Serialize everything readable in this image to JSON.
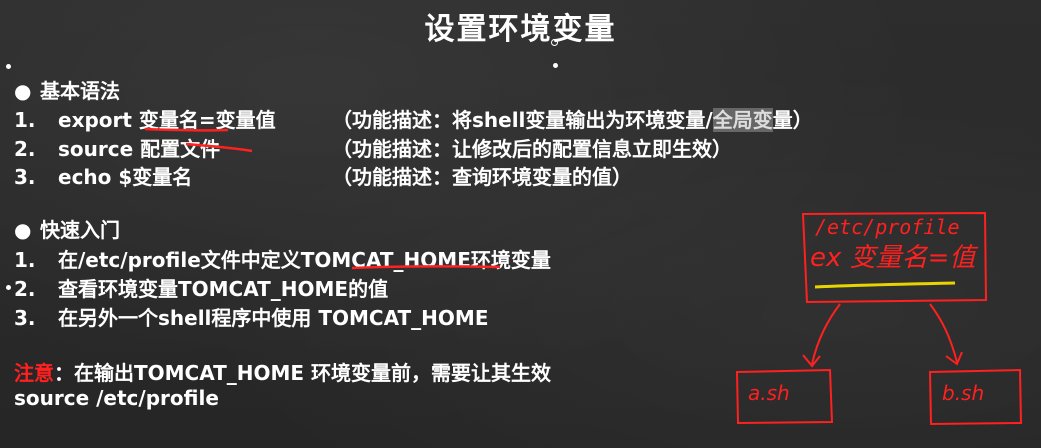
{
  "title": "设置环境变量",
  "section1": {
    "heading": "基本语法",
    "items": [
      {
        "num": "1.",
        "cmd": "export 变量名=变量值",
        "desc": "（功能描述：将shell变量输出为环境变量/",
        "desc_hl": "全局变",
        "desc_end": "量）"
      },
      {
        "num": "2.",
        "cmd": "source 配置文件",
        "desc": "（功能描述：让修改后的配置信息立即生效）"
      },
      {
        "num": "3.",
        "cmd": "echo $变量名",
        "desc": "（功能描述：查询环境变量的值）"
      }
    ]
  },
  "section2": {
    "heading": "快速入门",
    "items": [
      {
        "num": "1.",
        "text": "在/etc/profile文件中定义TOMCAT_HOME环境变量"
      },
      {
        "num": "2.",
        "text": "查看环境变量TOMCAT_HOME的值"
      },
      {
        "num": "3.",
        "text": "在另外一个shell程序中使用 TOMCAT_HOME"
      }
    ]
  },
  "note": {
    "label": "注意",
    "text": "：在输出TOMCAT_HOME 环境变量前，需要让其生效",
    "line2": "source /etc/profile"
  },
  "annotation": {
    "box_text1": "/etc/profile",
    "box_text2": "ex 变量名=值",
    "left_target": "a.sh",
    "right_target": "b.sh"
  },
  "colors": {
    "background": "#2b2b2b",
    "text": "#ffffff",
    "accent_red": "#ff2020",
    "ink_yellow": "#e8d400"
  }
}
